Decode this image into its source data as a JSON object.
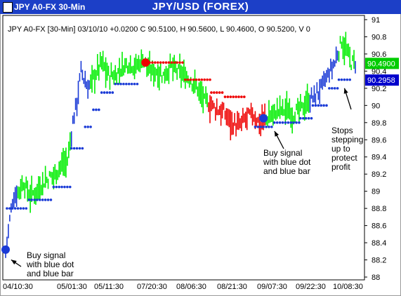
{
  "window": {
    "title": "JPY A0-FX 30-Min"
  },
  "chart_data": {
    "type": "ohlc",
    "title": "JPY/USD (FOREX)",
    "info_line": "JPY A0-FX [30-Min] 03/10/10 +0.0200 C 90.5100, H 90.5600, L 90.4600, O 90.5200, V 0",
    "ylim": [
      88,
      91
    ],
    "y_ticks": [
      "91",
      "90.8",
      "90.6",
      "90.4",
      "90.2",
      "90",
      "89.8",
      "89.6",
      "89.4",
      "89.2",
      "89",
      "88.8",
      "88.6",
      "88.4",
      "88.2",
      "88"
    ],
    "x_labels": [
      "04/10:30",
      "05/01:30",
      "05/11:30",
      "07/20:30",
      "08/06:30",
      "08/21:30",
      "09/07:30",
      "09/22:30",
      "10/08:30"
    ],
    "last_price_badge": {
      "value": "90.4900",
      "color": "#00cc00"
    },
    "stop_badge": {
      "value": "90.2958",
      "color": "#0000cc"
    },
    "colors": {
      "up": "#00ee00",
      "down": "#ee0000",
      "neutral": "#1a3ad6",
      "stop_dot": "#1a3ad6",
      "sell_dot": "#ee0000"
    },
    "price_path": [
      [
        0,
        88.3
      ],
      [
        5,
        88.9
      ],
      [
        9,
        89.0
      ],
      [
        13,
        89.1
      ],
      [
        18,
        88.95
      ],
      [
        22,
        89.0
      ],
      [
        27,
        89.1
      ],
      [
        31,
        89.15
      ],
      [
        36,
        89.2
      ],
      [
        40,
        89.3
      ],
      [
        45,
        89.35
      ],
      [
        49,
        89.8
      ],
      [
        52,
        90.05
      ],
      [
        55,
        90.4
      ],
      [
        60,
        90.2
      ],
      [
        65,
        90.35
      ],
      [
        70,
        90.5
      ],
      [
        75,
        90.35
      ],
      [
        80,
        90.35
      ],
      [
        85,
        90.45
      ],
      [
        90,
        90.5
      ],
      [
        95,
        90.45
      ],
      [
        100,
        90.55
      ],
      [
        105,
        90.4
      ],
      [
        110,
        90.4
      ],
      [
        115,
        90.35
      ],
      [
        120,
        90.45
      ],
      [
        125,
        90.4
      ],
      [
        130,
        90.35
      ],
      [
        135,
        90.3
      ],
      [
        140,
        90.2
      ],
      [
        145,
        90.05
      ],
      [
        150,
        90.0
      ],
      [
        155,
        89.95
      ],
      [
        160,
        89.9
      ],
      [
        165,
        89.8
      ],
      [
        170,
        89.75
      ],
      [
        175,
        89.85
      ],
      [
        180,
        89.9
      ],
      [
        185,
        89.8
      ],
      [
        190,
        89.85
      ],
      [
        195,
        89.9
      ],
      [
        200,
        89.95
      ],
      [
        205,
        89.95
      ],
      [
        210,
        89.9
      ],
      [
        215,
        89.95
      ],
      [
        220,
        90.05
      ],
      [
        225,
        90.1
      ],
      [
        230,
        90.2
      ],
      [
        235,
        90.35
      ],
      [
        240,
        90.5
      ],
      [
        245,
        90.75
      ],
      [
        248,
        90.65
      ],
      [
        252,
        90.5
      ],
      [
        255,
        90.5
      ]
    ],
    "colored_segments": [
      {
        "from": 9,
        "to": 48,
        "color": "up"
      },
      {
        "from": 62,
        "to": 96,
        "color": "up"
      },
      {
        "from": 96,
        "to": 148,
        "color": "up"
      },
      {
        "from": 148,
        "to": 190,
        "color": "down"
      },
      {
        "from": 190,
        "to": 222,
        "color": "up"
      },
      {
        "from": 243,
        "to": 255,
        "color": "up"
      }
    ],
    "stop_segments": [
      {
        "from": 1,
        "to": 17,
        "value": 88.8
      },
      {
        "from": 17,
        "to": 35,
        "value": 88.9
      },
      {
        "from": 35,
        "to": 48,
        "value": 89.05
      },
      {
        "from": 48,
        "to": 58,
        "value": 89.5
      },
      {
        "from": 58,
        "to": 64,
        "value": 89.75
      },
      {
        "from": 64,
        "to": 70,
        "value": 89.95
      },
      {
        "from": 70,
        "to": 80,
        "value": 90.15
      },
      {
        "from": 80,
        "to": 98,
        "value": 90.25
      },
      {
        "from": 182,
        "to": 196,
        "value": 89.75
      },
      {
        "from": 196,
        "to": 215,
        "value": 89.8
      },
      {
        "from": 215,
        "to": 224,
        "value": 89.85
      },
      {
        "from": 224,
        "to": 236,
        "value": 90.0
      },
      {
        "from": 236,
        "to": 243,
        "value": 90.2
      },
      {
        "from": 243,
        "to": 252,
        "value": 90.3
      }
    ],
    "resistance_segments": [
      {
        "from": 105,
        "to": 131,
        "value": 90.5
      },
      {
        "from": 131,
        "to": 150,
        "value": 90.3
      },
      {
        "from": 150,
        "to": 160,
        "value": 90.15
      },
      {
        "from": 160,
        "to": 176,
        "value": 90.1
      }
    ],
    "signals": [
      {
        "type": "buy",
        "index": 0,
        "price": 88.32
      },
      {
        "type": "sell",
        "index": 102,
        "price": 90.5
      },
      {
        "type": "buy",
        "index": 188,
        "price": 89.85
      }
    ],
    "annotations": [
      {
        "text": [
          "Buy signal",
          "with blue dot",
          "and blue bar"
        ],
        "target_index": 2,
        "target_price": 88.25
      },
      {
        "text": [
          "Buy signal",
          "with blue dot",
          "and blue bar"
        ],
        "target_index": 194,
        "target_price": 89.75
      },
      {
        "text": [
          "Stops",
          "stepping",
          "up to",
          "protect",
          "profit"
        ],
        "target_index": 245,
        "target_price": 90.25
      }
    ]
  }
}
